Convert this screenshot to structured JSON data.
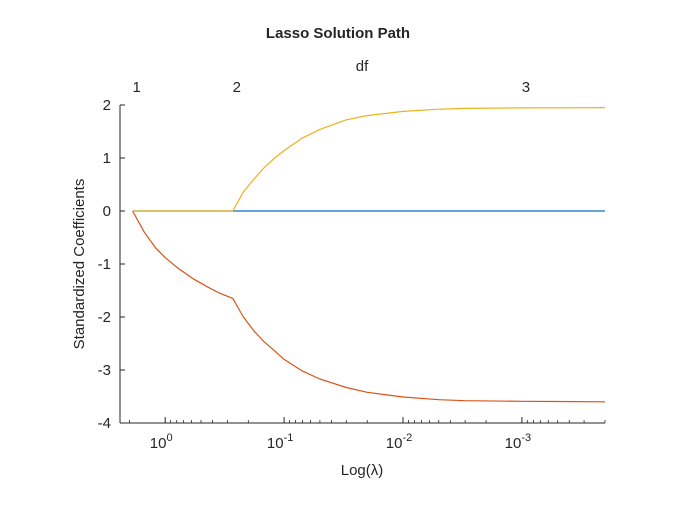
{
  "chart_data": {
    "type": "line",
    "title": "Lasso Solution Path",
    "xlabel": "Log(λ)",
    "ylabel": "Standardized Coefficients",
    "top_axis_label": "df",
    "x_scale": "log-reversed",
    "xlim": [
      2.4,
      0.0002
    ],
    "ylim": [
      -4,
      2
    ],
    "yticks": [
      -4,
      -3,
      -2,
      -1,
      0,
      1,
      2
    ],
    "xticks": [
      {
        "value": 1,
        "label_base": "10",
        "label_exp": "0"
      },
      {
        "value": 0.1,
        "label_base": "10",
        "label_exp": "-1"
      },
      {
        "value": 0.01,
        "label_base": "10",
        "label_exp": "-2"
      },
      {
        "value": 0.001,
        "label_base": "10",
        "label_exp": "-3"
      }
    ],
    "top_ticks": [
      {
        "value": 1.88,
        "label": "1"
      },
      {
        "value": 0.27,
        "label": "2"
      },
      {
        "value": 0.001,
        "label": "3"
      }
    ],
    "series": [
      {
        "color": "#0072BD",
        "x": [
          1.88,
          0.27,
          0.1,
          0.03,
          0.01,
          0.003,
          0.001,
          0.0002
        ],
        "y": [
          0,
          0,
          0,
          0,
          0,
          0,
          0,
          0
        ]
      },
      {
        "color": "#D95319",
        "x": [
          1.88,
          1.5,
          1.2,
          1.0,
          0.8,
          0.6,
          0.45,
          0.35,
          0.27,
          0.22,
          0.18,
          0.15,
          0.12,
          0.1,
          0.07,
          0.05,
          0.03,
          0.02,
          0.01,
          0.005,
          0.003,
          0.001,
          0.0005,
          0.0002
        ],
        "y": [
          0,
          -0.4,
          -0.7,
          -0.88,
          -1.06,
          -1.26,
          -1.42,
          -1.55,
          -1.65,
          -2.0,
          -2.26,
          -2.45,
          -2.64,
          -2.8,
          -3.02,
          -3.17,
          -3.33,
          -3.42,
          -3.51,
          -3.56,
          -3.58,
          -3.59,
          -3.595,
          -3.6
        ]
      },
      {
        "color": "#EDB120",
        "x": [
          1.88,
          0.27,
          0.22,
          0.18,
          0.15,
          0.12,
          0.1,
          0.07,
          0.05,
          0.03,
          0.02,
          0.01,
          0.005,
          0.003,
          0.001,
          0.0005,
          0.0002
        ],
        "y": [
          0,
          0,
          0.36,
          0.6,
          0.8,
          1.0,
          1.14,
          1.38,
          1.54,
          1.72,
          1.8,
          1.88,
          1.92,
          1.935,
          1.945,
          1.948,
          1.95
        ]
      }
    ]
  }
}
